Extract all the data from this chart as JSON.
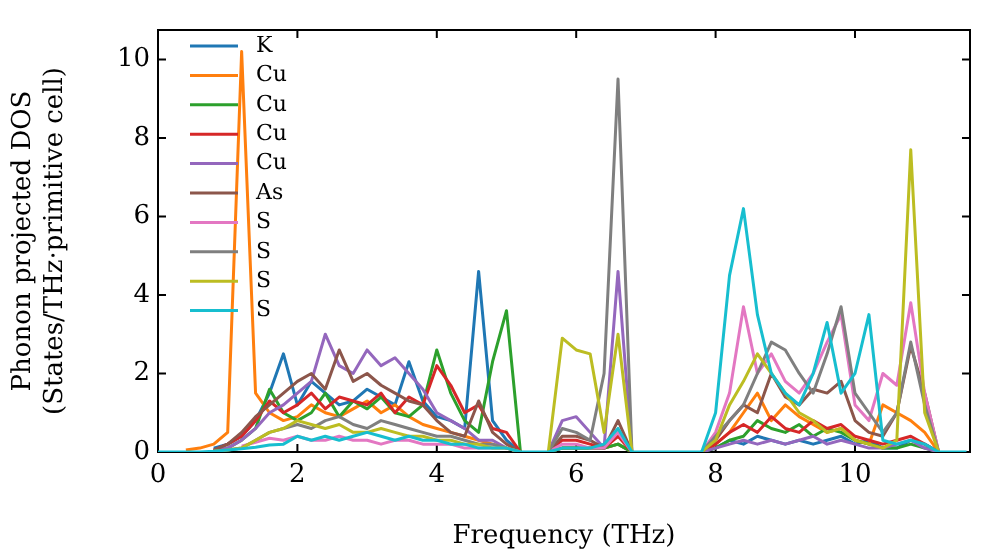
{
  "chart_data": {
    "type": "line",
    "xlabel": "Frequency (THz)",
    "ylabel": "Phonon projected DOS\n(States/THz·primitive cell)",
    "x": [
      0,
      0.2,
      0.4,
      0.6,
      0.8,
      1.0,
      1.2,
      1.4,
      1.6,
      1.8,
      2.0,
      2.2,
      2.4,
      2.6,
      2.8,
      3.0,
      3.2,
      3.4,
      3.6,
      3.8,
      4.0,
      4.2,
      4.4,
      4.6,
      4.8,
      5.0,
      5.2,
      5.4,
      5.6,
      5.8,
      6.0,
      6.2,
      6.4,
      6.6,
      6.8,
      7.0,
      7.2,
      7.4,
      7.6,
      7.8,
      8.0,
      8.2,
      8.4,
      8.6,
      8.8,
      9.0,
      9.2,
      9.4,
      9.6,
      9.8,
      10.0,
      10.2,
      10.4,
      10.6,
      10.8,
      11.0,
      11.2,
      11.4,
      11.6
    ],
    "xlim": [
      0,
      11.65
    ],
    "xticks": [
      0,
      2,
      4,
      6,
      8,
      10
    ],
    "ylim": [
      0,
      10.75
    ],
    "yticks": [
      0,
      2,
      4,
      6,
      8,
      10
    ],
    "legend": "top left",
    "series": [
      {
        "name": "K",
        "color": "#1f77b4",
        "values": [
          null,
          null,
          null,
          null,
          0.1,
          0.2,
          0.4,
          0.8,
          1.5,
          2.5,
          1.2,
          1.8,
          1.5,
          1.2,
          1.3,
          1.6,
          1.4,
          1.2,
          2.3,
          1.3,
          0.9,
          0.8,
          0.6,
          4.6,
          0.8,
          0.3,
          0,
          null,
          0,
          0.1,
          0.1,
          0.1,
          0.1,
          0.2,
          0,
          null,
          null,
          null,
          null,
          0,
          0.1,
          0.3,
          0.2,
          0.4,
          0.3,
          0.2,
          0.3,
          0.2,
          0.3,
          0.4,
          0.2,
          0.3,
          0.1,
          0.1,
          0.3,
          0.2,
          0,
          null,
          null
        ]
      },
      {
        "name": "Cu",
        "color": "#ff7f0e",
        "values": [
          null,
          null,
          0.05,
          0.1,
          0.2,
          0.5,
          10.2,
          1.5,
          1.0,
          0.8,
          0.9,
          1.2,
          1.0,
          0.9,
          1.1,
          1.3,
          1.0,
          1.2,
          0.9,
          0.7,
          0.6,
          0.5,
          0.4,
          0.3,
          0.2,
          0.1,
          0,
          null,
          0,
          0.1,
          0.1,
          0.1,
          0.1,
          0.2,
          0,
          null,
          null,
          null,
          null,
          0,
          0.2,
          0.5,
          1.0,
          1.5,
          0.8,
          1.2,
          0.9,
          0.7,
          0.5,
          0.6,
          0.3,
          0.2,
          1.2,
          1.0,
          0.8,
          0.5,
          0,
          null,
          null
        ]
      },
      {
        "name": "Cu",
        "color": "#2ca02c",
        "values": [
          null,
          null,
          null,
          null,
          0.05,
          0.1,
          0.3,
          0.6,
          1.6,
          1.0,
          0.8,
          1.0,
          1.5,
          0.9,
          1.3,
          1.1,
          1.4,
          1.0,
          0.9,
          1.2,
          2.6,
          1.5,
          0.8,
          0.5,
          2.3,
          3.6,
          0,
          null,
          0,
          0.1,
          0.1,
          0.1,
          0.1,
          0.2,
          0,
          null,
          null,
          null,
          null,
          0,
          0.1,
          0.3,
          0.4,
          0.8,
          0.6,
          0.5,
          0.7,
          0.4,
          0.6,
          0.5,
          0.3,
          0.2,
          0.1,
          0.1,
          0.2,
          0.1,
          0,
          null,
          null
        ]
      },
      {
        "name": "Cu",
        "color": "#d62728",
        "values": [
          null,
          null,
          null,
          null,
          0.05,
          0.2,
          0.4,
          0.8,
          1.3,
          1.0,
          1.2,
          1.5,
          1.1,
          1.4,
          1.3,
          1.2,
          1.5,
          1.0,
          1.4,
          1.2,
          2.2,
          1.7,
          1.0,
          1.2,
          0.6,
          0.5,
          0,
          null,
          0,
          0.3,
          0.3,
          0.2,
          0.1,
          0.4,
          0,
          null,
          null,
          null,
          null,
          0,
          0.2,
          0.5,
          0.7,
          0.5,
          0.9,
          0.6,
          0.5,
          0.8,
          0.6,
          0.7,
          0.4,
          0.3,
          0.2,
          0.3,
          0.4,
          0.2,
          0,
          null,
          null
        ]
      },
      {
        "name": "Cu",
        "color": "#9467bd",
        "values": [
          null,
          null,
          null,
          null,
          0.05,
          0.1,
          0.3,
          0.6,
          1.0,
          1.2,
          1.5,
          1.8,
          3.0,
          2.2,
          2.0,
          2.6,
          2.2,
          2.4,
          2.0,
          1.6,
          1.0,
          0.8,
          0.6,
          0.3,
          0.3,
          0.1,
          0,
          null,
          0,
          0.8,
          0.9,
          0.5,
          0.1,
          4.6,
          0,
          null,
          null,
          null,
          null,
          0,
          0.1,
          0.2,
          0.3,
          0.2,
          0.3,
          0.2,
          0.3,
          0.4,
          0.2,
          0.3,
          0.2,
          0.1,
          0.1,
          0.2,
          0.3,
          0.1,
          0,
          null,
          null
        ]
      },
      {
        "name": "As",
        "color": "#8c564b",
        "values": [
          null,
          null,
          null,
          null,
          0.05,
          0.2,
          0.5,
          0.9,
          1.2,
          1.5,
          1.8,
          2.0,
          1.6,
          2.6,
          1.8,
          2.0,
          1.7,
          1.5,
          1.3,
          1.2,
          0.8,
          0.5,
          0.4,
          1.3,
          0.5,
          0.2,
          0,
          null,
          0,
          0.4,
          0.4,
          0.3,
          0.1,
          0.8,
          0,
          null,
          null,
          null,
          null,
          0,
          0.3,
          0.8,
          1.2,
          1.0,
          2.0,
          1.4,
          1.2,
          1.6,
          1.5,
          1.8,
          0.8,
          0.5,
          0.4,
          1.0,
          2.7,
          1.5,
          0,
          null,
          null
        ]
      },
      {
        "name": "S",
        "color": "#e377c2",
        "values": [
          null,
          null,
          null,
          null,
          null,
          null,
          0.15,
          0.25,
          0.35,
          0.3,
          0.4,
          0.3,
          0.3,
          0.4,
          0.3,
          0.3,
          0.2,
          0.3,
          0.3,
          0.2,
          0.2,
          0.2,
          0.1,
          0.1,
          0.1,
          0.1,
          0,
          null,
          0,
          0.2,
          0.2,
          0.1,
          0.1,
          0.5,
          0,
          null,
          null,
          null,
          null,
          0,
          0.5,
          1.5,
          3.7,
          2.0,
          2.5,
          1.8,
          1.5,
          2.0,
          2.8,
          3.5,
          1.2,
          0.8,
          2.0,
          1.7,
          3.8,
          1.5,
          0,
          null,
          null
        ]
      },
      {
        "name": "S",
        "color": "#7f7f7f",
        "values": [
          null,
          null,
          null,
          null,
          0.02,
          0.05,
          0.1,
          0.3,
          0.5,
          0.6,
          0.7,
          0.6,
          0.8,
          0.9,
          0.7,
          0.6,
          0.8,
          0.7,
          0.6,
          0.5,
          0.4,
          0.4,
          0.3,
          0.2,
          0.2,
          0.1,
          0,
          null,
          0,
          0.6,
          0.5,
          0.3,
          2.0,
          9.5,
          0,
          null,
          null,
          null,
          null,
          0,
          0.4,
          0.8,
          1.2,
          2.0,
          2.8,
          2.6,
          2.0,
          1.5,
          2.5,
          3.7,
          1.5,
          1.0,
          0.5,
          1.0,
          2.8,
          1.2,
          0,
          null,
          null
        ]
      },
      {
        "name": "S",
        "color": "#bcbd22",
        "values": [
          null,
          null,
          null,
          null,
          0.02,
          0.05,
          0.1,
          0.3,
          0.5,
          0.6,
          0.8,
          0.7,
          0.6,
          0.7,
          0.5,
          0.5,
          0.6,
          0.5,
          0.4,
          0.4,
          0.3,
          0.3,
          0.2,
          0.2,
          0.1,
          0.1,
          0,
          null,
          0,
          2.9,
          2.6,
          2.5,
          0.5,
          3.0,
          0,
          null,
          null,
          null,
          null,
          0,
          0.3,
          1.2,
          1.8,
          2.5,
          2.0,
          1.5,
          1.0,
          0.8,
          0.5,
          0.6,
          0.3,
          0.2,
          0.1,
          0.3,
          7.7,
          1.0,
          0,
          null,
          null
        ]
      },
      {
        "name": "S",
        "color": "#17becf",
        "values": [
          0,
          0,
          0,
          0,
          0.02,
          0.05,
          0.08,
          0.12,
          0.18,
          0.2,
          0.4,
          0.3,
          0.4,
          0.3,
          0.4,
          0.5,
          0.4,
          0.3,
          0.4,
          0.3,
          0.3,
          0.2,
          0.2,
          0.1,
          0.1,
          0.1,
          0,
          0,
          0,
          0.1,
          0.1,
          0.1,
          0.2,
          0.6,
          0,
          0,
          0,
          0,
          0,
          0,
          1.0,
          4.5,
          6.2,
          3.5,
          2.0,
          1.5,
          1.2,
          2.0,
          3.3,
          1.5,
          2.0,
          3.5,
          0.3,
          0.2,
          0.3,
          0.2,
          0,
          0,
          0
        ]
      }
    ]
  }
}
